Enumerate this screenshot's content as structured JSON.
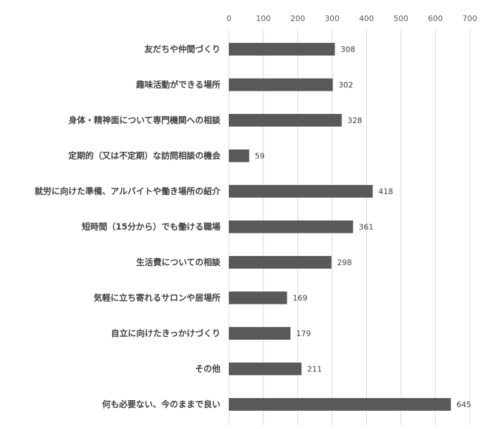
{
  "chart_data": {
    "type": "bar",
    "orientation": "horizontal",
    "categories": [
      "友だちや仲間づくり",
      "趣味活動ができる場所",
      "身体・精神面について専門機関への相談",
      "定期的（又は不定期）な訪問相談の機会",
      "就労に向けた準備、アルバイトや働き場所の紹介",
      "短時間（15分から）でも働ける職場",
      "生活費についての相談",
      "気軽に立ち寄れるサロンや居場所",
      "自立に向けたきっかけづくり",
      "その他",
      "何も必要ない、今のままで良い"
    ],
    "values": [
      308,
      302,
      328,
      59,
      418,
      361,
      298,
      169,
      179,
      211,
      645
    ],
    "x_ticks": [
      0,
      100,
      200,
      300,
      400,
      500,
      600,
      700
    ],
    "xlim": [
      0,
      700
    ],
    "axis_position": "top",
    "grid": true,
    "data_labels": true,
    "colors": {
      "bar": "#595959",
      "grid": "#d9d9d9",
      "text": "#404040"
    }
  }
}
